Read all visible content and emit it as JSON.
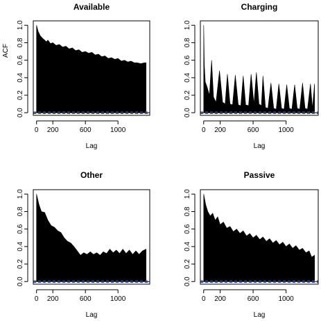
{
  "chart_data": [
    {
      "type": "area",
      "title": "Available",
      "xlabel": "Lag",
      "ylabel": "ACF",
      "xlim": [
        -40,
        1390
      ],
      "ylim": [
        -0.03,
        1.05
      ],
      "xticks": [
        "0",
        "200",
        "600",
        "1000"
      ],
      "yticks": [
        "0.0",
        "0.2",
        "0.4",
        "0.6",
        "0.8",
        "1.0"
      ],
      "ci_line": 0.01,
      "envelope": [
        [
          0,
          1.0
        ],
        [
          20,
          0.93
        ],
        [
          45,
          0.88
        ],
        [
          75,
          0.85
        ],
        [
          100,
          0.83
        ],
        [
          120,
          0.81
        ],
        [
          140,
          0.83
        ],
        [
          170,
          0.79
        ],
        [
          200,
          0.8
        ],
        [
          240,
          0.77
        ],
        [
          280,
          0.78
        ],
        [
          320,
          0.75
        ],
        [
          360,
          0.76
        ],
        [
          400,
          0.73
        ],
        [
          440,
          0.74
        ],
        [
          480,
          0.71
        ],
        [
          520,
          0.72
        ],
        [
          560,
          0.69
        ],
        [
          600,
          0.7
        ],
        [
          640,
          0.68
        ],
        [
          680,
          0.69
        ],
        [
          720,
          0.66
        ],
        [
          760,
          0.67
        ],
        [
          800,
          0.64
        ],
        [
          840,
          0.65
        ],
        [
          880,
          0.62
        ],
        [
          920,
          0.63
        ],
        [
          960,
          0.61
        ],
        [
          1000,
          0.62
        ],
        [
          1040,
          0.59
        ],
        [
          1080,
          0.6
        ],
        [
          1120,
          0.58
        ],
        [
          1160,
          0.59
        ],
        [
          1200,
          0.57
        ],
        [
          1240,
          0.57
        ],
        [
          1280,
          0.56
        ],
        [
          1320,
          0.57
        ],
        [
          1345,
          0.57
        ]
      ]
    },
    {
      "type": "area",
      "title": "Charging",
      "xlabel": "Lag",
      "ylabel": "",
      "xlim": [
        -40,
        1390
      ],
      "ylim": [
        -0.03,
        1.05
      ],
      "xticks": [
        "0",
        "200",
        "600",
        "1000"
      ],
      "yticks": [
        "0.0",
        "0.2",
        "0.4",
        "0.6",
        "0.8",
        "1.0"
      ],
      "ci_line": 0.01,
      "envelope": [
        [
          0,
          1.0
        ],
        [
          8,
          0.55
        ],
        [
          20,
          0.35
        ],
        [
          40,
          0.3
        ],
        [
          70,
          0.2
        ],
        [
          96,
          0.6
        ],
        [
          120,
          0.18
        ],
        [
          150,
          0.12
        ],
        [
          192,
          0.48
        ],
        [
          230,
          0.12
        ],
        [
          260,
          0.1
        ],
        [
          288,
          0.44
        ],
        [
          320,
          0.1
        ],
        [
          350,
          0.09
        ],
        [
          384,
          0.43
        ],
        [
          420,
          0.09
        ],
        [
          450,
          0.08
        ],
        [
          480,
          0.42
        ],
        [
          510,
          0.09
        ],
        [
          545,
          0.08
        ],
        [
          576,
          0.44
        ],
        [
          610,
          0.1
        ],
        [
          640,
          0.46
        ],
        [
          672,
          0.1
        ],
        [
          700,
          0.08
        ],
        [
          720,
          0.42
        ],
        [
          750,
          0.06
        ],
        [
          780,
          0.05
        ],
        [
          816,
          0.34
        ],
        [
          850,
          0.05
        ],
        [
          880,
          0.04
        ],
        [
          912,
          0.33
        ],
        [
          945,
          0.05
        ],
        [
          975,
          0.04
        ],
        [
          1008,
          0.32
        ],
        [
          1040,
          0.05
        ],
        [
          1070,
          0.04
        ],
        [
          1104,
          0.32
        ],
        [
          1135,
          0.05
        ],
        [
          1165,
          0.04
        ],
        [
          1200,
          0.34
        ],
        [
          1230,
          0.05
        ],
        [
          1260,
          0.04
        ],
        [
          1296,
          0.33
        ],
        [
          1320,
          0.05
        ],
        [
          1345,
          0.33
        ]
      ]
    },
    {
      "type": "area",
      "title": "Other",
      "xlabel": "Lag",
      "ylabel": "",
      "xlim": [
        -40,
        1390
      ],
      "ylim": [
        -0.03,
        1.05
      ],
      "xticks": [
        "0",
        "200",
        "600",
        "1000"
      ],
      "yticks": [
        "0.0",
        "0.2",
        "0.4",
        "0.6",
        "0.8",
        "1.0"
      ],
      "ci_line": 0.01,
      "envelope": [
        [
          0,
          1.0
        ],
        [
          30,
          0.88
        ],
        [
          60,
          0.8
        ],
        [
          100,
          0.79
        ],
        [
          140,
          0.7
        ],
        [
          180,
          0.64
        ],
        [
          220,
          0.62
        ],
        [
          260,
          0.58
        ],
        [
          300,
          0.56
        ],
        [
          340,
          0.5
        ],
        [
          380,
          0.46
        ],
        [
          420,
          0.44
        ],
        [
          460,
          0.4
        ],
        [
          500,
          0.35
        ],
        [
          540,
          0.3
        ],
        [
          580,
          0.33
        ],
        [
          620,
          0.31
        ],
        [
          660,
          0.34
        ],
        [
          700,
          0.31
        ],
        [
          740,
          0.33
        ],
        [
          780,
          0.3
        ],
        [
          820,
          0.34
        ],
        [
          860,
          0.32
        ],
        [
          900,
          0.37
        ],
        [
          940,
          0.33
        ],
        [
          980,
          0.36
        ],
        [
          1020,
          0.32
        ],
        [
          1060,
          0.37
        ],
        [
          1100,
          0.32
        ],
        [
          1140,
          0.36
        ],
        [
          1180,
          0.31
        ],
        [
          1220,
          0.35
        ],
        [
          1260,
          0.31
        ],
        [
          1300,
          0.35
        ],
        [
          1345,
          0.37
        ]
      ]
    },
    {
      "type": "area",
      "title": "Passive",
      "xlabel": "Lag",
      "ylabel": "",
      "xlim": [
        -40,
        1390
      ],
      "ylim": [
        -0.03,
        1.05
      ],
      "xticks": [
        "0",
        "200",
        "600",
        "1000"
      ],
      "yticks": [
        "0.0",
        "0.2",
        "0.4",
        "0.6",
        "0.8",
        "1.0"
      ],
      "ci_line": 0.01,
      "envelope": [
        [
          0,
          1.0
        ],
        [
          25,
          0.88
        ],
        [
          50,
          0.8
        ],
        [
          80,
          0.75
        ],
        [
          110,
          0.78
        ],
        [
          140,
          0.7
        ],
        [
          170,
          0.74
        ],
        [
          200,
          0.65
        ],
        [
          240,
          0.68
        ],
        [
          280,
          0.61
        ],
        [
          320,
          0.63
        ],
        [
          360,
          0.57
        ],
        [
          400,
          0.6
        ],
        [
          440,
          0.55
        ],
        [
          480,
          0.58
        ],
        [
          520,
          0.52
        ],
        [
          560,
          0.55
        ],
        [
          600,
          0.5
        ],
        [
          640,
          0.53
        ],
        [
          680,
          0.48
        ],
        [
          720,
          0.51
        ],
        [
          760,
          0.46
        ],
        [
          800,
          0.49
        ],
        [
          840,
          0.44
        ],
        [
          880,
          0.47
        ],
        [
          920,
          0.42
        ],
        [
          960,
          0.45
        ],
        [
          1000,
          0.4
        ],
        [
          1040,
          0.43
        ],
        [
          1080,
          0.38
        ],
        [
          1120,
          0.41
        ],
        [
          1160,
          0.36
        ],
        [
          1200,
          0.38
        ],
        [
          1240,
          0.33
        ],
        [
          1280,
          0.35
        ],
        [
          1310,
          0.28
        ],
        [
          1345,
          0.3
        ]
      ]
    }
  ]
}
